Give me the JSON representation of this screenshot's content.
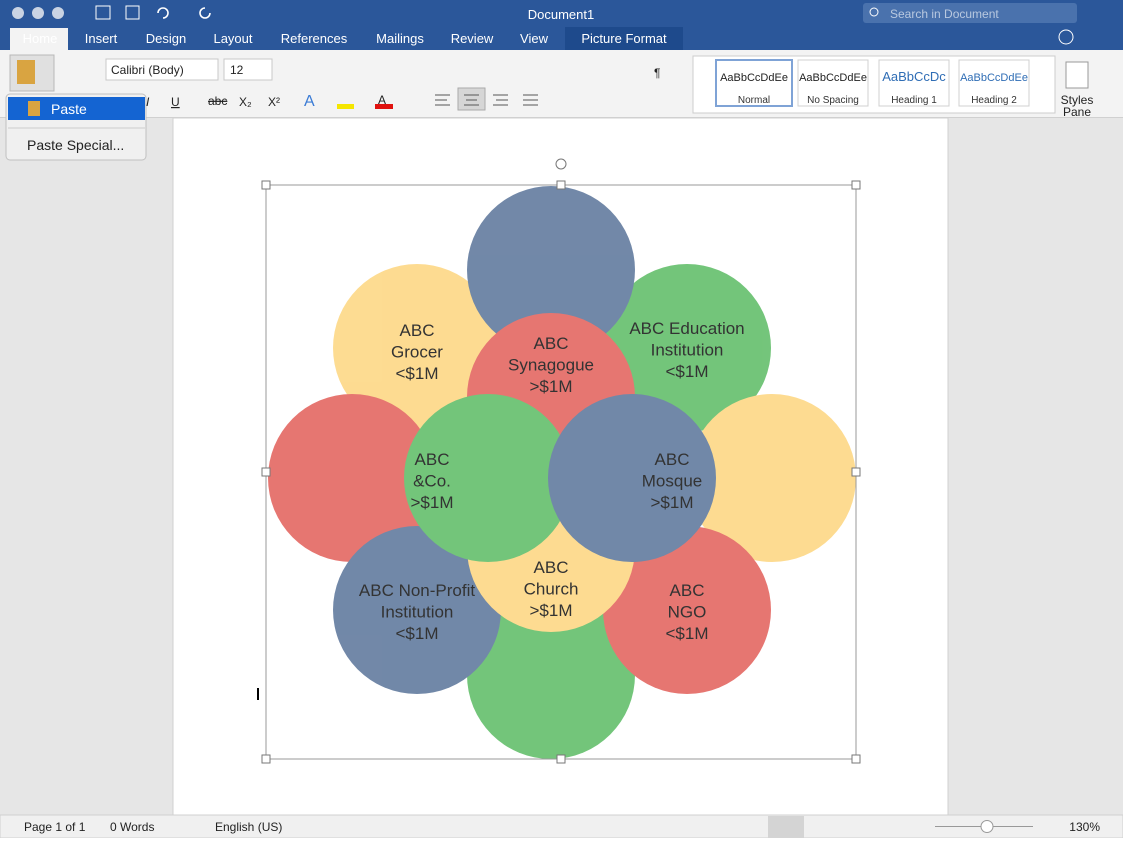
{
  "window": {
    "title": "Document1",
    "search_placeholder": "Search in Document"
  },
  "tabs": [
    "Home",
    "Insert",
    "Design",
    "Layout",
    "References",
    "Mailings",
    "Review",
    "View",
    "Picture Format"
  ],
  "font": {
    "name": "Calibri (Body)",
    "size": "12"
  },
  "format_buttons": {
    "italic": "I",
    "underline": "U",
    "strikethrough": "abc",
    "subscript": "X₂",
    "superscript": "X²",
    "text_effects": "A",
    "font_color": "A",
    "pilcrow": "¶"
  },
  "paste_menu": [
    "Paste",
    "Paste Special..."
  ],
  "styles": [
    {
      "preview": "AaBbCcDdEe",
      "name": "Normal"
    },
    {
      "preview": "AaBbCcDdEe",
      "name": "No Spacing"
    },
    {
      "preview": "AaBbCcDc",
      "name": "Heading 1"
    },
    {
      "preview": "AaBbCcDdEe",
      "name": "Heading 2"
    }
  ],
  "styles_pane": [
    "Styles",
    "Pane"
  ],
  "nodes": [
    {
      "lines": [
        "ABC",
        "Grocer",
        "<$1M"
      ]
    },
    {
      "lines": [
        "ABC",
        "Synagogue",
        ">$1M"
      ]
    },
    {
      "lines": [
        "ABC Education",
        "Institution",
        "<$1M"
      ]
    },
    {
      "lines": [
        "ABC",
        "&Co.",
        ">$1M"
      ]
    },
    {
      "lines": [
        "ABC",
        "Mosque",
        ">$1M"
      ]
    },
    {
      "lines": [
        "ABC",
        "Church",
        ">$1M"
      ]
    },
    {
      "lines": [
        "ABC Non-Profit",
        "Institution",
        "<$1M"
      ]
    },
    {
      "lines": [
        "ABC",
        "NGO",
        "<$1M"
      ]
    }
  ],
  "status": {
    "page": "Page 1 of 1",
    "words": "0 Words",
    "language": "English (US)",
    "zoom": "130%"
  }
}
